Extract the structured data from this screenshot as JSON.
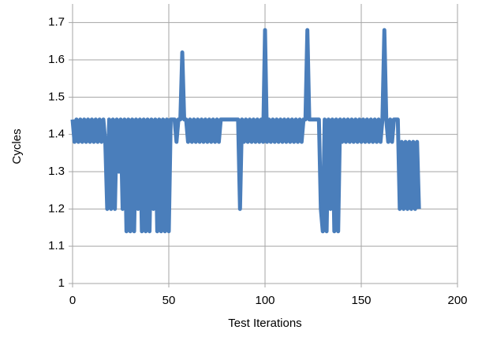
{
  "chart_data": {
    "type": "line",
    "xlabel": "Test Iterations",
    "ylabel": "Cycles",
    "x": [
      0,
      1,
      2,
      3,
      4,
      5,
      6,
      7,
      8,
      9,
      10,
      11,
      12,
      13,
      14,
      15,
      16,
      17,
      18,
      19,
      20,
      21,
      22,
      23,
      24,
      25,
      26,
      27,
      28,
      29,
      30,
      31,
      32,
      33,
      34,
      35,
      36,
      37,
      38,
      39,
      40,
      41,
      42,
      43,
      44,
      45,
      46,
      47,
      48,
      49,
      50,
      51,
      52,
      53,
      54,
      55,
      56,
      57,
      58,
      59,
      60,
      61,
      62,
      63,
      64,
      65,
      66,
      67,
      68,
      69,
      70,
      71,
      72,
      73,
      74,
      75,
      76,
      77,
      78,
      79,
      80,
      81,
      82,
      83,
      84,
      85,
      86,
      87,
      88,
      89,
      90,
      91,
      92,
      93,
      94,
      95,
      96,
      97,
      98,
      99,
      100,
      101,
      102,
      103,
      104,
      105,
      106,
      107,
      108,
      109,
      110,
      111,
      112,
      113,
      114,
      115,
      116,
      117,
      118,
      119,
      120,
      121,
      122,
      123,
      124,
      125,
      126,
      127,
      128,
      129,
      130,
      131,
      132,
      133,
      134,
      135,
      136,
      137,
      138,
      139,
      140,
      141,
      142,
      143,
      144,
      145,
      146,
      147,
      148,
      149,
      150,
      151,
      152,
      153,
      154,
      155,
      156,
      157,
      158,
      159,
      160,
      161,
      162,
      163,
      164,
      165,
      166,
      167,
      168,
      169,
      170,
      171,
      172,
      173,
      174,
      175,
      176,
      177,
      178,
      179,
      180
    ],
    "series": [
      {
        "name": "Cycles",
        "color": "#4a7ebb",
        "values": [
          1.44,
          1.38,
          1.44,
          1.38,
          1.44,
          1.38,
          1.44,
          1.38,
          1.44,
          1.38,
          1.44,
          1.38,
          1.44,
          1.38,
          1.44,
          1.38,
          1.44,
          1.38,
          1.2,
          1.44,
          1.2,
          1.44,
          1.2,
          1.44,
          1.3,
          1.44,
          1.2,
          1.44,
          1.14,
          1.44,
          1.14,
          1.44,
          1.14,
          1.44,
          1.2,
          1.44,
          1.14,
          1.44,
          1.14,
          1.44,
          1.14,
          1.44,
          1.2,
          1.44,
          1.14,
          1.44,
          1.14,
          1.44,
          1.14,
          1.44,
          1.14,
          1.44,
          1.44,
          1.44,
          1.38,
          1.44,
          1.44,
          1.62,
          1.44,
          1.44,
          1.38,
          1.44,
          1.38,
          1.44,
          1.38,
          1.44,
          1.38,
          1.44,
          1.38,
          1.44,
          1.38,
          1.44,
          1.38,
          1.44,
          1.38,
          1.44,
          1.38,
          1.44,
          1.44,
          1.44,
          1.44,
          1.44,
          1.44,
          1.44,
          1.44,
          1.44,
          1.44,
          1.2,
          1.44,
          1.38,
          1.44,
          1.38,
          1.44,
          1.38,
          1.44,
          1.38,
          1.44,
          1.38,
          1.44,
          1.38,
          1.68,
          1.38,
          1.44,
          1.38,
          1.44,
          1.38,
          1.44,
          1.38,
          1.44,
          1.38,
          1.44,
          1.38,
          1.44,
          1.38,
          1.44,
          1.38,
          1.44,
          1.38,
          1.44,
          1.38,
          1.44,
          1.44,
          1.68,
          1.44,
          1.44,
          1.44,
          1.44,
          1.44,
          1.44,
          1.2,
          1.14,
          1.44,
          1.14,
          1.44,
          1.2,
          1.44,
          1.14,
          1.44,
          1.14,
          1.44,
          1.38,
          1.44,
          1.38,
          1.44,
          1.38,
          1.44,
          1.38,
          1.44,
          1.38,
          1.44,
          1.38,
          1.44,
          1.38,
          1.44,
          1.38,
          1.44,
          1.38,
          1.44,
          1.38,
          1.44,
          1.38,
          1.44,
          1.68,
          1.44,
          1.38,
          1.44,
          1.38,
          1.44,
          1.44,
          1.44,
          1.2,
          1.38,
          1.2,
          1.38,
          1.2,
          1.38,
          1.2,
          1.38,
          1.2,
          1.38,
          1.2
        ]
      }
    ],
    "xlim": [
      0,
      200
    ],
    "xticks": [
      0,
      50,
      100,
      150,
      200
    ],
    "ylim": [
      1,
      1.75
    ],
    "yticks": [
      1,
      1.1,
      1.2,
      1.3,
      1.4,
      1.5,
      1.6,
      1.7
    ],
    "grid": true
  }
}
